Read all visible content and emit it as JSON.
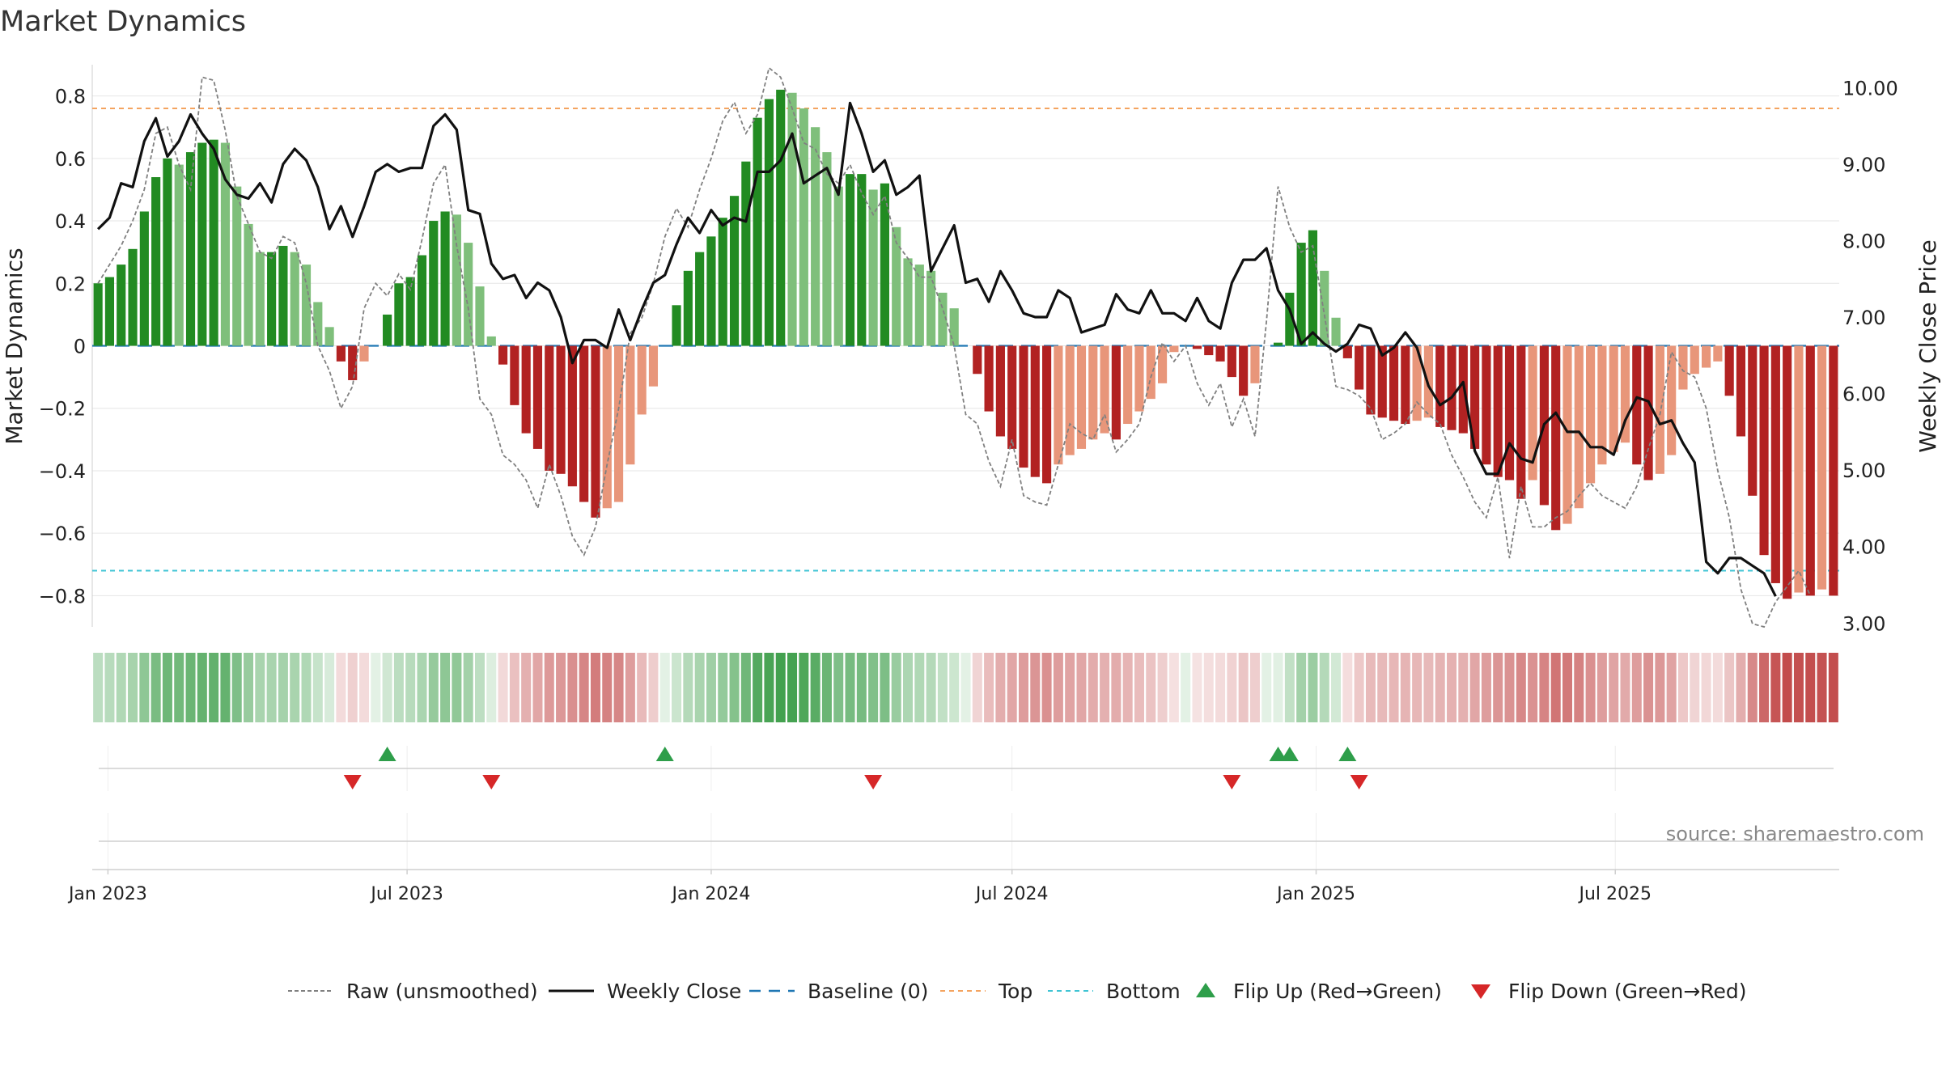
{
  "chart_data": {
    "type": "bar",
    "title": "Market Dynamics",
    "ylabel_left": "Market Dynamics",
    "ylabel_right": "Weekly Close Price",
    "source": "source: sharemaestro.com",
    "y_left_lim": [
      -0.9,
      0.9
    ],
    "y_left_ticks": [
      0.8,
      0.6,
      0.4,
      0.2,
      0,
      -0.2,
      -0.4,
      -0.6,
      -0.8
    ],
    "y_left_tick_labels": [
      "0.8",
      "0.6",
      "0.4",
      "0.2",
      "0",
      "−0.2",
      "−0.4",
      "−0.6",
      "−0.8"
    ],
    "y_right_lim": [
      3.0,
      10.0
    ],
    "y_right_ticks": [
      10.0,
      9.0,
      8.0,
      7.0,
      6.0,
      5.0,
      4.0,
      3.0
    ],
    "y_right_tick_labels": [
      "10.00",
      "9.00",
      "8.00",
      "7.00",
      "6.00",
      "5.00",
      "4.00",
      "3.00"
    ],
    "x_ticks": [
      "2023-01-01",
      "2023-07-01",
      "2024-01-01",
      "2024-07-01",
      "2025-01-01",
      "2025-07-01"
    ],
    "x_tick_labels": [
      "Jan 2023",
      "Jul 2023",
      "Jan 2024",
      "Jul 2024",
      "Jan 2025",
      "Jul 2025"
    ],
    "x_start": "2022-12-26",
    "week_days": 7,
    "top_line": 0.76,
    "bottom_line": -0.72,
    "baseline": 0,
    "values": [
      0.2,
      0.22,
      0.26,
      0.31,
      0.43,
      0.54,
      0.6,
      0.58,
      0.62,
      0.65,
      0.66,
      0.65,
      0.51,
      0.39,
      0.3,
      0.3,
      0.32,
      0.3,
      0.26,
      0.14,
      0.06,
      -0.05,
      -0.11,
      -0.05,
      0,
      0.1,
      0.2,
      0.22,
      0.29,
      0.4,
      0.43,
      0.42,
      0.33,
      0.19,
      0.03,
      -0.06,
      -0.19,
      -0.28,
      -0.33,
      -0.4,
      -0.41,
      -0.45,
      -0.5,
      -0.55,
      -0.52,
      -0.5,
      -0.38,
      -0.22,
      -0.13,
      0,
      0.13,
      0.24,
      0.3,
      0.35,
      0.41,
      0.48,
      0.59,
      0.73,
      0.79,
      0.82,
      0.81,
      0.76,
      0.7,
      0.62,
      0.51,
      0.55,
      0.55,
      0.5,
      0.52,
      0.38,
      0.28,
      0.26,
      0.24,
      0.17,
      0.12,
      0,
      -0.09,
      -0.21,
      -0.29,
      -0.33,
      -0.39,
      -0.42,
      -0.44,
      -0.38,
      -0.35,
      -0.33,
      -0.3,
      -0.28,
      -0.3,
      -0.25,
      -0.21,
      -0.17,
      -0.12,
      -0.02,
      0,
      -0.01,
      -0.03,
      -0.05,
      -0.1,
      -0.16,
      -0.12,
      0,
      0.01,
      0.17,
      0.33,
      0.37,
      0.24,
      0.09,
      -0.04,
      -0.14,
      -0.22,
      -0.23,
      -0.24,
      -0.25,
      -0.24,
      -0.23,
      -0.26,
      -0.27,
      -0.28,
      -0.33,
      -0.38,
      -0.42,
      -0.43,
      -0.49,
      -0.43,
      -0.51,
      -0.59,
      -0.57,
      -0.52,
      -0.44,
      -0.38,
      -0.34,
      -0.31,
      -0.38,
      -0.43,
      -0.41,
      -0.35,
      -0.14,
      -0.09,
      -0.07,
      -0.05,
      -0.16,
      -0.29,
      -0.48,
      -0.67,
      -0.76,
      -0.81,
      -0.79,
      -0.8,
      -0.78,
      -0.8
    ],
    "raw_values": [
      0.2,
      0.26,
      0.32,
      0.4,
      0.5,
      0.68,
      0.7,
      0.58,
      0.5,
      0.86,
      0.85,
      0.69,
      0.48,
      0.39,
      0.3,
      0.28,
      0.35,
      0.33,
      0.2,
      0,
      -0.08,
      -0.2,
      -0.13,
      0.12,
      0.2,
      0.16,
      0.23,
      0.18,
      0.34,
      0.52,
      0.58,
      0.32,
      0.12,
      -0.17,
      -0.22,
      -0.35,
      -0.38,
      -0.43,
      -0.52,
      -0.38,
      -0.48,
      -0.61,
      -0.67,
      -0.58,
      -0.38,
      -0.2,
      0.04,
      0.09,
      0.2,
      0.35,
      0.44,
      0.38,
      0.5,
      0.6,
      0.72,
      0.78,
      0.68,
      0.74,
      0.89,
      0.86,
      0.76,
      0.65,
      0.63,
      0.55,
      0.52,
      0.58,
      0.49,
      0.42,
      0.48,
      0.33,
      0.28,
      0.22,
      0.22,
      0.12,
      0,
      -0.22,
      -0.25,
      -0.37,
      -0.45,
      -0.3,
      -0.48,
      -0.5,
      -0.51,
      -0.38,
      -0.25,
      -0.28,
      -0.3,
      -0.22,
      -0.34,
      -0.3,
      -0.25,
      -0.1,
      0.01,
      -0.05,
      0,
      -0.12,
      -0.19,
      -0.12,
      -0.26,
      -0.17,
      -0.29,
      0.08,
      0.51,
      0.38,
      0.3,
      0.32,
      0.1,
      -0.13,
      -0.14,
      -0.16,
      -0.2,
      -0.3,
      -0.28,
      -0.25,
      -0.18,
      -0.22,
      -0.25,
      -0.35,
      -0.42,
      -0.5,
      -0.55,
      -0.42,
      -0.68,
      -0.45,
      -0.58,
      -0.58,
      -0.55,
      -0.53,
      -0.48,
      -0.44,
      -0.48,
      -0.5,
      -0.52,
      -0.45,
      -0.33,
      -0.22,
      -0.02,
      -0.08,
      -0.1,
      -0.2,
      -0.4,
      -0.55,
      -0.78,
      -0.89,
      -0.9,
      -0.82,
      -0.77,
      -0.72,
      -0.8
    ],
    "close_values": [
      8.15,
      8.3,
      8.75,
      8.7,
      9.3,
      9.6,
      9.1,
      9.3,
      9.65,
      9.4,
      9.2,
      8.8,
      8.6,
      8.55,
      8.75,
      8.5,
      9.0,
      9.2,
      9.05,
      8.7,
      8.15,
      8.45,
      8.05,
      8.45,
      8.9,
      9.0,
      8.9,
      8.95,
      8.95,
      9.5,
      9.65,
      9.45,
      8.4,
      8.35,
      7.7,
      7.5,
      7.55,
      7.25,
      7.45,
      7.35,
      7.0,
      6.4,
      6.7,
      6.7,
      6.6,
      7.1,
      6.7,
      7.1,
      7.45,
      7.55,
      7.95,
      8.3,
      8.1,
      8.4,
      8.2,
      8.3,
      8.25,
      8.9,
      8.9,
      9.05,
      9.4,
      8.75,
      8.85,
      8.95,
      8.6,
      9.8,
      9.4,
      8.9,
      9.05,
      8.6,
      8.7,
      8.85,
      7.6,
      7.9,
      8.2,
      7.45,
      7.5,
      7.2,
      7.6,
      7.35,
      7.05,
      7.0,
      7.0,
      7.35,
      7.25,
      6.8,
      6.85,
      6.9,
      7.3,
      7.1,
      7.05,
      7.35,
      7.05,
      7.05,
      6.95,
      7.25,
      6.95,
      6.85,
      7.45,
      7.75,
      7.75,
      7.9,
      7.35,
      7.1,
      6.65,
      6.8,
      6.65,
      6.55,
      6.65,
      6.9,
      6.85,
      6.5,
      6.6,
      6.8,
      6.6,
      6.1,
      5.85,
      5.95,
      6.15,
      5.25,
      4.95,
      4.95,
      5.35,
      5.15,
      5.1,
      5.6,
      5.75,
      5.5,
      5.5,
      5.3,
      5.3,
      5.2,
      5.65,
      5.95,
      5.9,
      5.6,
      5.65,
      5.35,
      5.1,
      3.8,
      3.65,
      3.85,
      3.85,
      3.75,
      3.65,
      3.35
    ],
    "flip_up_weeks": [
      25,
      49,
      102,
      103,
      108
    ],
    "flip_down_weeks": [
      22,
      34,
      67,
      98,
      109
    ],
    "legend": [
      "Raw (unsmoothed)",
      "Weekly Close",
      "Baseline (0)",
      "Top",
      "Bottom",
      "Flip Up (Red→Green)",
      "Flip Down (Green→Red)"
    ],
    "colors": {
      "up_dark": "#228b22",
      "up_light": "#7fbf7b",
      "down_dark": "#b22222",
      "down_light": "#e8967a",
      "raw": "#808080",
      "close": "#111111",
      "baseline": "#1f77b4",
      "top": "#f4a460",
      "bottom": "#40c4d4",
      "flip_up": "#2e9e4a",
      "flip_down": "#d62728",
      "heat_up": "#43a14f",
      "heat_down": "#c24a4a",
      "grid": "#e6e6e6",
      "axis": "#cfcfcf",
      "text": "#222222",
      "source": "#888888"
    }
  }
}
